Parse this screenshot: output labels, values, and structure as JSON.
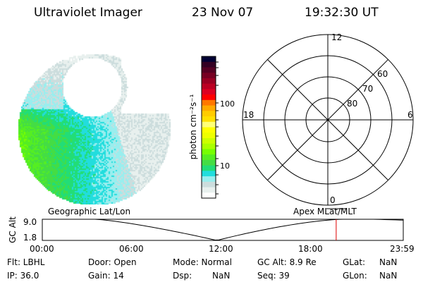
{
  "header": {
    "title": "Ultraviolet Imager",
    "date": "23 Nov 07",
    "time": "19:32:30 UT"
  },
  "colorbar": {
    "label": "photon cm⁻²s⁻¹",
    "ticks": [
      "100",
      "10"
    ],
    "colors": [
      "#000033",
      "#330022",
      "#550022",
      "#770022",
      "#990022",
      "#bb0022",
      "#dd0022",
      "#ff0000",
      "#ff7700",
      "#ffaa00",
      "#ffcc00",
      "#ffe000",
      "#ffff77",
      "#ffff00",
      "#eeff00",
      "#ccff00",
      "#aaff00",
      "#77ff00",
      "#55ee22",
      "#44dd44",
      "#22dd77",
      "#22dddd",
      "#99eeee",
      "#ccdddd",
      "#e8f0ee",
      "#ffffff"
    ]
  },
  "polar": {
    "mlt_labels": [
      "12",
      "6",
      "0",
      "18"
    ],
    "lat_labels": [
      "80",
      "70",
      "60"
    ]
  },
  "timeline": {
    "left_label": "Geographic Lat/Lon",
    "right_label": "Apex MLat/MLT",
    "y_axis_label": "GC Alt",
    "y_ticks": [
      "9.0",
      "1.8"
    ],
    "x_ticks": [
      "00:00",
      "06:00",
      "12:00",
      "18:00",
      "23:59"
    ],
    "current_time_hours": 19.54,
    "marker_color": "#dd0000"
  },
  "info": {
    "row1": [
      "Flt: LBHL",
      "Door: Open",
      "Mode: Normal",
      "GC Alt: 8.9 Re",
      "GLat:",
      "NaN"
    ],
    "row2": [
      "IP: 36.0",
      "Gain: 14",
      "Dsp:",
      "NaN",
      "Seq: 39",
      "GLon:",
      "NaN"
    ]
  }
}
